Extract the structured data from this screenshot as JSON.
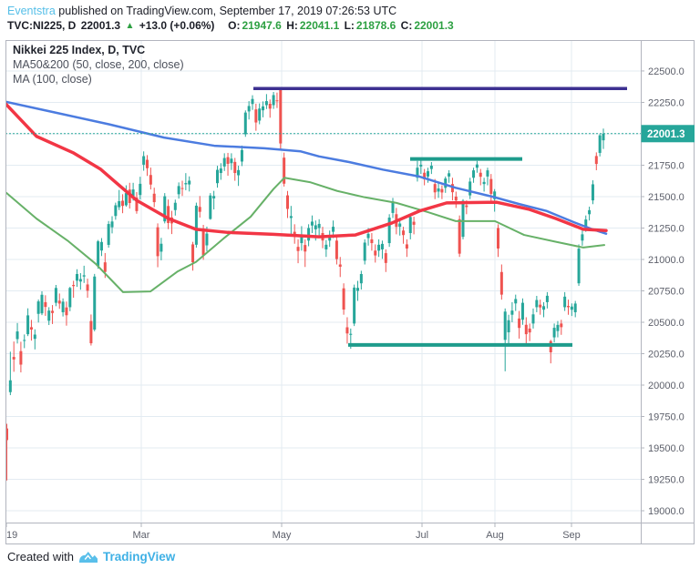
{
  "header": {
    "publisher": "Eventstra",
    "published_text": "published on TradingView.com, September 17, 2019 07:26:53 UTC",
    "symbol": "TVC:NI225, D",
    "last_price_text": "22001.3",
    "change_arrow": "▲",
    "change_text": "+13.0 (+0.06%)",
    "open_label": "O:",
    "open_value": "21947.6",
    "high_label": "H:",
    "high_value": "22041.1",
    "low_label": "L:",
    "low_value": "21878.6",
    "close_label": "C:",
    "close_value": "22001.3"
  },
  "legend": {
    "title": "Nikkei 225 Index, D, TVC",
    "ma50_200": "MA50&200 (50, close, 200, close)",
    "ma100": "MA (100, close)"
  },
  "footer": {
    "created_with": "Created with",
    "brand": "TradingView"
  },
  "colors": {
    "up": "#26a69a",
    "down": "#ef5350",
    "ma50": "#f23645",
    "ma200": "#4c7ce0",
    "ma100": "#67b168",
    "level_teal": "#1e9c8c",
    "level_purple": "#3d3091",
    "last_price": "#26a69a",
    "tag_bg": "#26a69a",
    "tag_text": "#ffffff",
    "grid": "#e3ebf2",
    "border": "#b2b5be",
    "axis_text": "#5d606b"
  },
  "chart_data": {
    "type": "candlestick",
    "title": "Nikkei 225 Index, D, TVC",
    "interval": "D",
    "grid": true,
    "ylim": [
      18906,
      22746
    ],
    "y_ticks": [
      22500,
      22250,
      22000,
      21750,
      21500,
      21250,
      21000,
      20750,
      20500,
      20250,
      20000,
      19750,
      19500,
      19250,
      19000
    ],
    "x_ticks": [
      {
        "label": "19",
        "x": 7
      },
      {
        "label": "Mar",
        "x": 155
      },
      {
        "label": "May",
        "x": 309
      },
      {
        "label": "Jul",
        "x": 463
      },
      {
        "label": "Aug",
        "x": 543
      },
      {
        "label": "Sep",
        "x": 627
      }
    ],
    "last_price": 22001.3,
    "candles": [
      [
        19655,
        19692,
        19241,
        19562
      ],
      [
        19944,
        20266,
        19920,
        20038
      ],
      [
        20224,
        20347,
        20106,
        20204
      ],
      [
        20366,
        20494,
        20331,
        20427
      ],
      [
        20270,
        20345,
        20101,
        20163
      ],
      [
        20352,
        20403,
        20294,
        20359
      ],
      [
        20405,
        20611,
        20390,
        20555
      ],
      [
        20461,
        20519,
        20354,
        20442
      ],
      [
        20368,
        20444,
        20284,
        20402
      ],
      [
        20567,
        20681,
        20498,
        20666
      ],
      [
        20571,
        20746,
        20557,
        20719
      ],
      [
        20660,
        20715,
        20551,
        20622
      ],
      [
        20512,
        20620,
        20478,
        20593
      ],
      [
        20591,
        20637,
        20486,
        20574
      ],
      [
        20655,
        20797,
        20628,
        20773
      ],
      [
        20672,
        20729,
        20607,
        20649
      ],
      [
        20580,
        20690,
        20546,
        20664
      ],
      [
        20618,
        20665,
        20473,
        20556
      ],
      [
        20620,
        20782,
        20588,
        20773
      ],
      [
        20797,
        20830,
        20695,
        20788
      ],
      [
        20831,
        20922,
        20782,
        20884
      ],
      [
        20824,
        20891,
        20759,
        20844
      ],
      [
        20864,
        20950,
        20813,
        20874
      ],
      [
        20801,
        20847,
        20695,
        20751
      ],
      [
        20510,
        20562,
        20315,
        20333
      ],
      [
        20442,
        20885,
        20428,
        20864
      ],
      [
        20948,
        21155,
        20926,
        21144
      ],
      [
        21071,
        21170,
        21027,
        21139
      ],
      [
        20977,
        21051,
        20853,
        20901
      ],
      [
        21116,
        21306,
        21094,
        21282
      ],
      [
        21256,
        21344,
        21207,
        21302
      ],
      [
        21346,
        21452,
        21316,
        21431
      ],
      [
        21416,
        21553,
        21393,
        21464
      ],
      [
        21467,
        21519,
        21368,
        21426
      ],
      [
        21431,
        21590,
        21420,
        21528
      ],
      [
        21556,
        21610,
        21405,
        21449
      ],
      [
        21504,
        21610,
        21468,
        21557
      ],
      [
        21492,
        21536,
        21364,
        21385
      ],
      [
        21513,
        21658,
        21477,
        21602
      ],
      [
        21754,
        21860,
        21706,
        21822
      ],
      [
        21793,
        21830,
        21665,
        21726
      ],
      [
        21672,
        21731,
        21557,
        21596
      ],
      [
        21523,
        21571,
        21416,
        21456
      ],
      [
        21256,
        21287,
        20938,
        21026
      ],
      [
        21062,
        21172,
        20993,
        21125
      ],
      [
        21303,
        21528,
        21287,
        21503
      ],
      [
        21425,
        21477,
        21241,
        21290
      ],
      [
        21334,
        21387,
        21202,
        21287
      ],
      [
        21393,
        21476,
        21349,
        21451
      ],
      [
        21519,
        21613,
        21484,
        21584
      ],
      [
        21568,
        21627,
        21505,
        21567
      ],
      [
        21598,
        21687,
        21551,
        21608
      ],
      [
        21597,
        21661,
        21541,
        21627
      ],
      [
        21120,
        21140,
        20911,
        20977
      ],
      [
        21117,
        21452,
        21094,
        21428
      ],
      [
        21418,
        21505,
        21333,
        21379
      ],
      [
        21225,
        21275,
        20997,
        21033
      ],
      [
        21112,
        21261,
        21064,
        21206
      ],
      [
        21322,
        21528,
        21316,
        21509
      ],
      [
        21486,
        21546,
        21398,
        21505
      ],
      [
        21607,
        21745,
        21571,
        21713
      ],
      [
        21688,
        21766,
        21634,
        21724
      ],
      [
        21740,
        21845,
        21704,
        21807
      ],
      [
        21814,
        21848,
        21666,
        21761
      ],
      [
        21766,
        21845,
        21712,
        21802
      ],
      [
        21776,
        21808,
        21626,
        21688
      ],
      [
        21670,
        21746,
        21585,
        21711
      ],
      [
        21779,
        21906,
        21743,
        21871
      ],
      [
        21996,
        22186,
        21976,
        22169
      ],
      [
        22178,
        22260,
        22114,
        22221
      ],
      [
        22237,
        22307,
        22190,
        22277
      ],
      [
        22194,
        22240,
        22024,
        22090
      ],
      [
        22105,
        22242,
        22076,
        22201
      ],
      [
        22187,
        22258,
        22131,
        22218
      ],
      [
        22228,
        22316,
        22197,
        22260
      ],
      [
        22239,
        22273,
        22128,
        22200
      ],
      [
        22228,
        22333,
        22198,
        22308
      ],
      [
        22266,
        22328,
        22205,
        22259
      ],
      [
        22350,
        22365,
        21875,
        21923
      ],
      [
        21810,
        21850,
        21580,
        21603
      ],
      [
        21510,
        21545,
        21330,
        21402
      ],
      [
        21330,
        21426,
        21190,
        21345
      ],
      [
        21220,
        21280,
        21125,
        21191
      ],
      [
        21100,
        21160,
        20970,
        21067
      ],
      [
        21130,
        21265,
        21070,
        21188
      ],
      [
        21115,
        21160,
        20940,
        21063
      ],
      [
        21150,
        21280,
        21105,
        21250
      ],
      [
        21270,
        21350,
        21210,
        21301
      ],
      [
        21240,
        21310,
        21150,
        21272
      ],
      [
        21250,
        21320,
        21185,
        21283
      ],
      [
        21210,
        21260,
        21090,
        21151
      ],
      [
        21080,
        21155,
        21020,
        21117
      ],
      [
        21150,
        21230,
        21100,
        21183
      ],
      [
        21220,
        21310,
        21170,
        21260
      ],
      [
        21150,
        21180,
        20960,
        21003
      ],
      [
        20960,
        21020,
        20860,
        20942
      ],
      [
        20770,
        20810,
        20560,
        20601
      ],
      [
        20460,
        20540,
        20330,
        20411
      ],
      [
        20400,
        20450,
        20289,
        20408
      ],
      [
        20490,
        20800,
        20470,
        20776
      ],
      [
        20750,
        20830,
        20670,
        20774
      ],
      [
        20810,
        20910,
        20760,
        20884
      ],
      [
        20990,
        21160,
        20960,
        21134
      ],
      [
        21170,
        21250,
        21110,
        21204
      ],
      [
        21160,
        21210,
        21070,
        21130
      ],
      [
        21070,
        21120,
        20975,
        21032
      ],
      [
        21070,
        21160,
        21020,
        21117
      ],
      [
        21080,
        21150,
        21005,
        21124
      ],
      [
        21050,
        21080,
        20900,
        20972
      ],
      [
        21130,
        21360,
        21100,
        21333
      ],
      [
        21370,
        21490,
        21330,
        21462
      ],
      [
        21360,
        21410,
        21200,
        21259
      ],
      [
        21260,
        21330,
        21190,
        21286
      ],
      [
        21230,
        21260,
        21125,
        21194
      ],
      [
        21120,
        21160,
        21020,
        21087
      ],
      [
        21210,
        21360,
        21160,
        21338
      ],
      [
        21300,
        21340,
        21200,
        21276
      ],
      [
        21650,
        21784,
        21620,
        21730
      ],
      [
        21740,
        21786,
        21680,
        21754
      ],
      [
        21690,
        21720,
        21590,
        21638
      ],
      [
        21660,
        21730,
        21610,
        21702
      ],
      [
        21720,
        21775,
        21680,
        21746
      ],
      [
        21600,
        21640,
        21480,
        21534
      ],
      [
        21540,
        21610,
        21490,
        21565
      ],
      [
        21560,
        21590,
        21480,
        21533
      ],
      [
        21570,
        21660,
        21530,
        21644
      ],
      [
        21660,
        21710,
        21610,
        21686
      ],
      [
        21600,
        21650,
        21470,
        21535
      ],
      [
        21500,
        21540,
        21410,
        21469
      ],
      [
        21320,
        21350,
        21020,
        21046
      ],
      [
        21180,
        21480,
        21160,
        21467
      ],
      [
        21430,
        21470,
        21360,
        21417
      ],
      [
        21510,
        21650,
        21480,
        21620
      ],
      [
        21650,
        21730,
        21610,
        21709
      ],
      [
        21730,
        21784,
        21690,
        21756
      ],
      [
        21690,
        21720,
        21590,
        21658
      ],
      [
        21600,
        21650,
        21540,
        21617
      ],
      [
        21660,
        21730,
        21590,
        21709
      ],
      [
        21640,
        21680,
        21460,
        21522
      ],
      [
        21480,
        21560,
        21380,
        21541
      ],
      [
        21250,
        21280,
        21020,
        21087
      ],
      [
        20900,
        20960,
        20680,
        20720
      ],
      [
        20360,
        20610,
        20110,
        20585
      ],
      [
        20420,
        20560,
        20330,
        20516
      ],
      [
        20560,
        20660,
        20500,
        20593
      ],
      [
        20650,
        20720,
        20590,
        20685
      ],
      [
        20530,
        20590,
        20370,
        20455
      ],
      [
        20520,
        20690,
        20480,
        20655
      ],
      [
        20480,
        20540,
        20330,
        20405
      ],
      [
        20450,
        20490,
        20350,
        20419
      ],
      [
        20490,
        20610,
        20450,
        20563
      ],
      [
        20620,
        20710,
        20580,
        20677
      ],
      [
        20640,
        20680,
        20560,
        20618
      ],
      [
        20600,
        20660,
        20540,
        20628
      ],
      [
        20660,
        20740,
        20610,
        20711
      ],
      [
        20350,
        20360,
        20173,
        20261
      ],
      [
        20380,
        20490,
        20340,
        20456
      ],
      [
        20430,
        20510,
        20380,
        20479
      ],
      [
        20490,
        20520,
        20400,
        20461
      ],
      [
        20620,
        20740,
        20590,
        20704
      ],
      [
        20630,
        20680,
        20560,
        20620
      ],
      [
        20600,
        20650,
        20550,
        20625
      ],
      [
        20580,
        20670,
        20540,
        20649
      ],
      [
        20810,
        21120,
        20790,
        21086
      ],
      [
        21150,
        21230,
        21110,
        21200
      ],
      [
        21250,
        21350,
        21220,
        21318
      ],
      [
        21360,
        21420,
        21310,
        21392
      ],
      [
        21470,
        21630,
        21440,
        21598
      ],
      [
        21823,
        21852,
        21710,
        21760
      ],
      [
        21848,
        21998,
        21820,
        21988
      ],
      [
        21948,
        22041,
        21879,
        22001
      ]
    ],
    "overlays": {
      "ma50": {
        "name": "MA 50",
        "points": [
          [
            6,
            22240
          ],
          [
            40,
            21980
          ],
          [
            80,
            21850
          ],
          [
            110,
            21720
          ],
          [
            150,
            21470
          ],
          [
            185,
            21325
          ],
          [
            215,
            21240
          ],
          [
            250,
            21215
          ],
          [
            300,
            21200
          ],
          [
            350,
            21180
          ],
          [
            390,
            21195
          ],
          [
            430,
            21290
          ],
          [
            460,
            21385
          ],
          [
            490,
            21450
          ],
          [
            545,
            21455
          ],
          [
            580,
            21400
          ],
          [
            610,
            21325
          ],
          [
            640,
            21240
          ],
          [
            665,
            21230
          ]
        ]
      },
      "ma200": {
        "name": "MA 200",
        "points": [
          [
            6,
            22255
          ],
          [
            60,
            22170
          ],
          [
            120,
            22075
          ],
          [
            180,
            21970
          ],
          [
            235,
            21905
          ],
          [
            290,
            21885
          ],
          [
            330,
            21860
          ],
          [
            350,
            21820
          ],
          [
            383,
            21775
          ],
          [
            420,
            21715
          ],
          [
            460,
            21660
          ],
          [
            500,
            21570
          ],
          [
            540,
            21500
          ],
          [
            570,
            21440
          ],
          [
            600,
            21385
          ],
          [
            630,
            21295
          ],
          [
            650,
            21240
          ],
          [
            665,
            21205
          ]
        ]
      },
      "ma100": {
        "name": "MA 100",
        "points": [
          [
            7,
            21530
          ],
          [
            40,
            21325
          ],
          [
            75,
            21145
          ],
          [
            105,
            20965
          ],
          [
            135,
            20740
          ],
          [
            165,
            20745
          ],
          [
            195,
            20905
          ],
          [
            215,
            20980
          ],
          [
            245,
            21165
          ],
          [
            275,
            21340
          ],
          [
            300,
            21560
          ],
          [
            312,
            21650
          ],
          [
            340,
            21615
          ],
          [
            370,
            21545
          ],
          [
            400,
            21495
          ],
          [
            435,
            21450
          ],
          [
            470,
            21375
          ],
          [
            500,
            21305
          ],
          [
            543,
            21305
          ],
          [
            575,
            21195
          ],
          [
            610,
            21140
          ],
          [
            640,
            21095
          ],
          [
            663,
            21115
          ]
        ]
      }
    },
    "trend_lines": [
      {
        "name": "may-high-resistance",
        "price": 22360,
        "x1": 278,
        "x2": 688,
        "color_key": "level_purple",
        "width": 3.5
      },
      {
        "name": "july-resistance",
        "price": 21800,
        "x1": 450,
        "x2": 573,
        "color_key": "level_teal",
        "width": 4
      },
      {
        "name": "june-august-support",
        "price": 20320,
        "x1": 382,
        "x2": 628,
        "color_key": "level_teal",
        "width": 4
      }
    ]
  }
}
